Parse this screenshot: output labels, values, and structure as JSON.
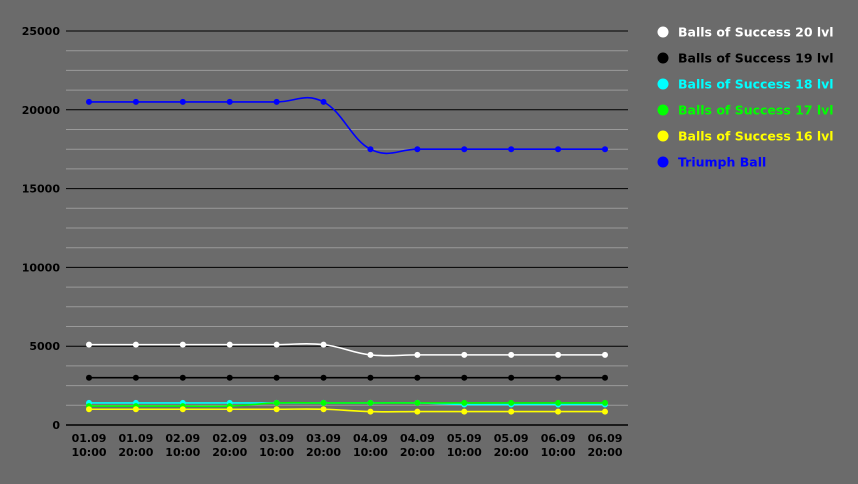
{
  "chart_data": {
    "type": "line",
    "title": "",
    "xlabel": "",
    "ylabel": "",
    "ylim": [
      0,
      25000
    ],
    "y_ticks": [
      0,
      5000,
      10000,
      15000,
      20000,
      25000
    ],
    "grid": true,
    "legend_position": "top-right",
    "background_color": "#6b6b6b",
    "categories": [
      [
        "01.09",
        "10:00"
      ],
      [
        "01.09",
        "20:00"
      ],
      [
        "02.09",
        "10:00"
      ],
      [
        "02.09",
        "20:00"
      ],
      [
        "03.09",
        "10:00"
      ],
      [
        "03.09",
        "20:00"
      ],
      [
        "04.09",
        "10:00"
      ],
      [
        "04.09",
        "20:00"
      ],
      [
        "05.09",
        "10:00"
      ],
      [
        "05.09",
        "20:00"
      ],
      [
        "06.09",
        "10:00"
      ],
      [
        "06.09",
        "20:00"
      ]
    ],
    "series": [
      {
        "name": "Balls of Success 20 lvl",
        "color": "#ffffff",
        "values": [
          5100,
          5100,
          5100,
          5100,
          5100,
          5100,
          4450,
          4450,
          4450,
          4450,
          4450,
          4450
        ]
      },
      {
        "name": "Balls of Success 19 lvl",
        "color": "#000000",
        "values": [
          3000,
          3000,
          3000,
          3000,
          3000,
          3000,
          3000,
          3000,
          3000,
          3000,
          3000,
          3000
        ]
      },
      {
        "name": "Balls of Success 18 lvl",
        "color": "#00ffff",
        "values": [
          1400,
          1400,
          1400,
          1400,
          1400,
          1400,
          1400,
          1400,
          1300,
          1300,
          1300,
          1300
        ]
      },
      {
        "name": "Balls of Success 17 lvl",
        "color": "#00ff00",
        "values": [
          1200,
          1200,
          1200,
          1200,
          1400,
          1400,
          1400,
          1400,
          1400,
          1400,
          1400,
          1400
        ]
      },
      {
        "name": "Balls of Success 16 lvl",
        "color": "#ffff00",
        "values": [
          1000,
          1000,
          1000,
          1000,
          1000,
          1000,
          850,
          850,
          850,
          850,
          850,
          850
        ]
      },
      {
        "name": "Triumph Ball",
        "color": "#0000ff",
        "values": [
          20500,
          20500,
          20500,
          20500,
          20500,
          20500,
          17500,
          17500,
          17500,
          17500,
          17500,
          17500
        ]
      }
    ]
  }
}
